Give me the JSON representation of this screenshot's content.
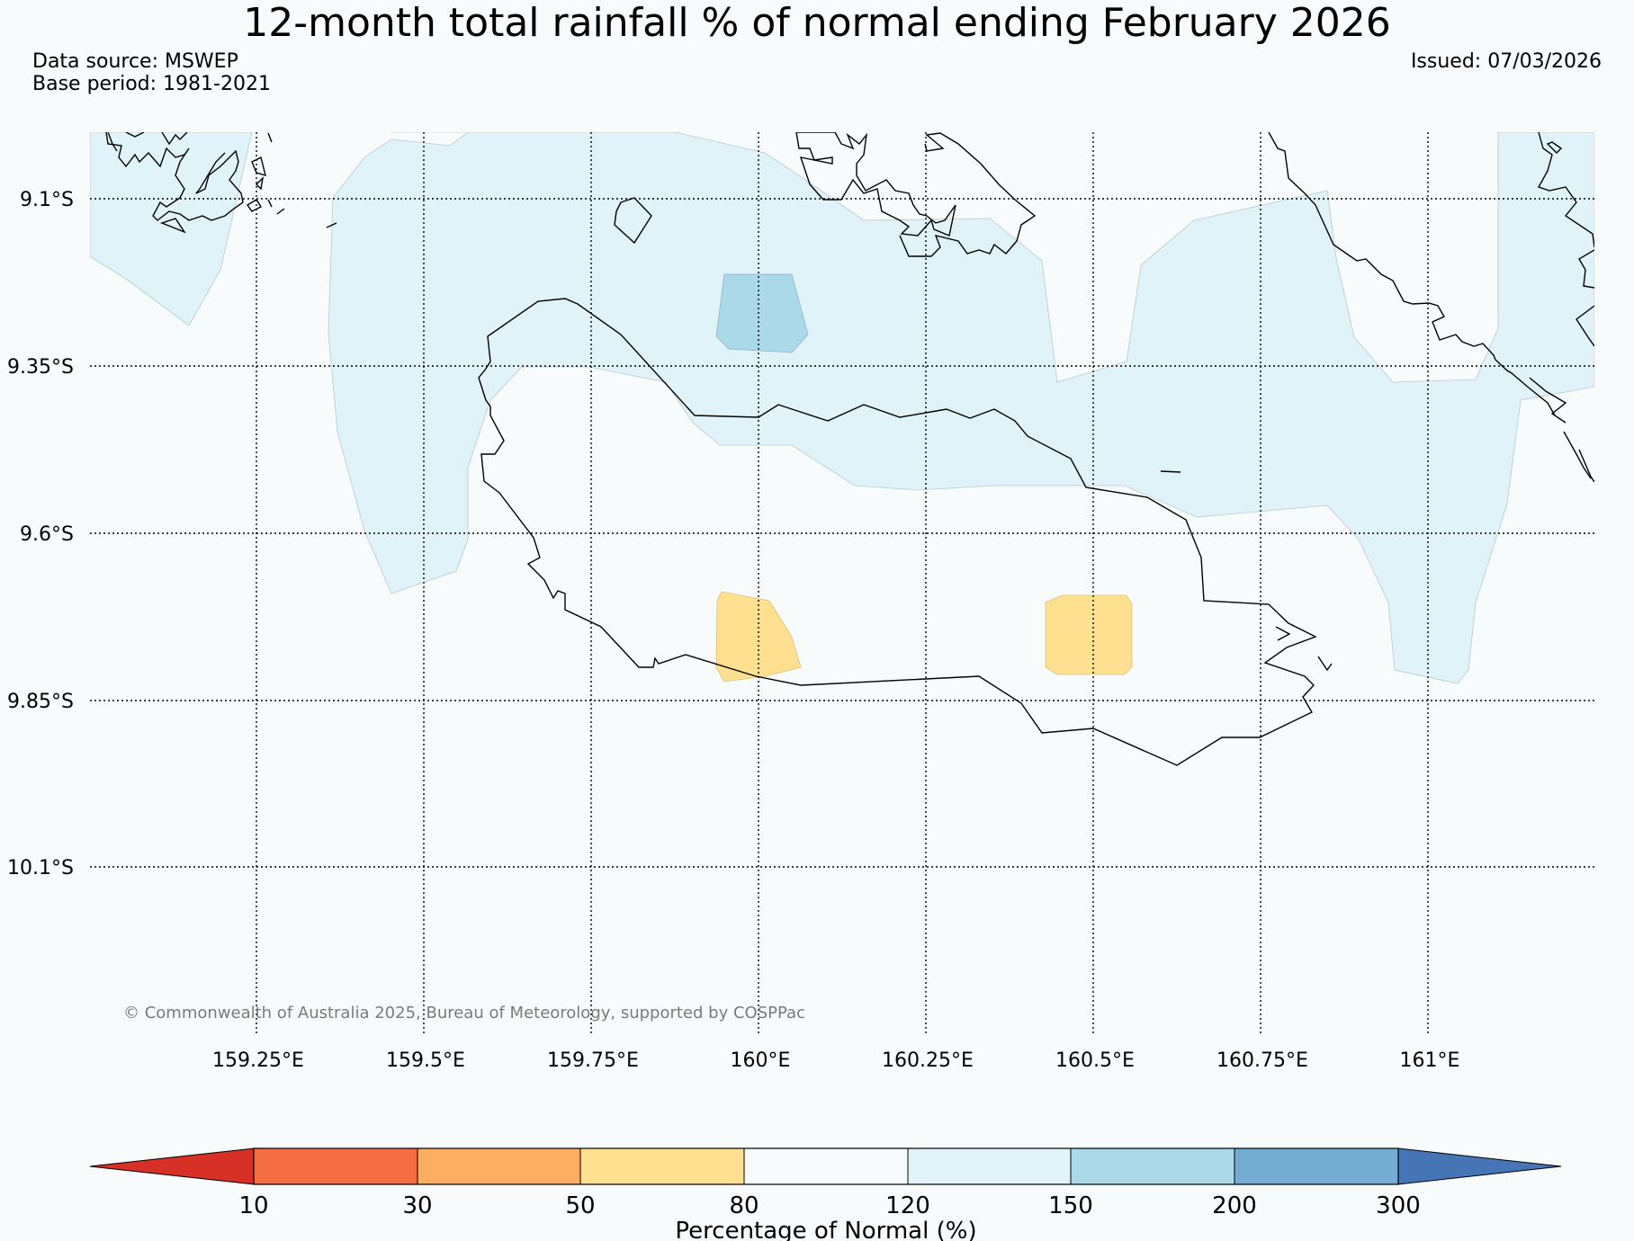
{
  "title": "12-month total rainfall % of normal ending February 2026",
  "data_source": "Data source: MSWEP",
  "base_period": "Base period: 1981-2021",
  "issued": "Issued: 07/03/2026",
  "copyright": "© Commonwealth of Australia 2025, Bureau of Meteorology, supported by COSPPac",
  "map": {
    "lat_labels": [
      "9.1°S",
      "9.35°S",
      "9.6°S",
      "9.85°S",
      "10.1°S"
    ],
    "lon_labels": [
      "159.25°E",
      "159.5°E",
      "159.75°E",
      "160°E",
      "160.25°E",
      "160.5°E",
      "160.75°E",
      "161°E"
    ]
  },
  "colorbar": {
    "label": "Percentage of Normal (%)",
    "ticks": [
      "10",
      "30",
      "50",
      "80",
      "120",
      "150",
      "200",
      "300"
    ],
    "colors": {
      "below_10": "#d73027",
      "c10_30": "#f46d43",
      "c30_50": "#fdae61",
      "c50_80": "#fee090",
      "c80_120": "#f7fbfc",
      "c120_150": "#e0f3f8",
      "c150_200": "#abd9e9",
      "c200_300": "#74add1",
      "above_300": "#4575b4"
    }
  }
}
